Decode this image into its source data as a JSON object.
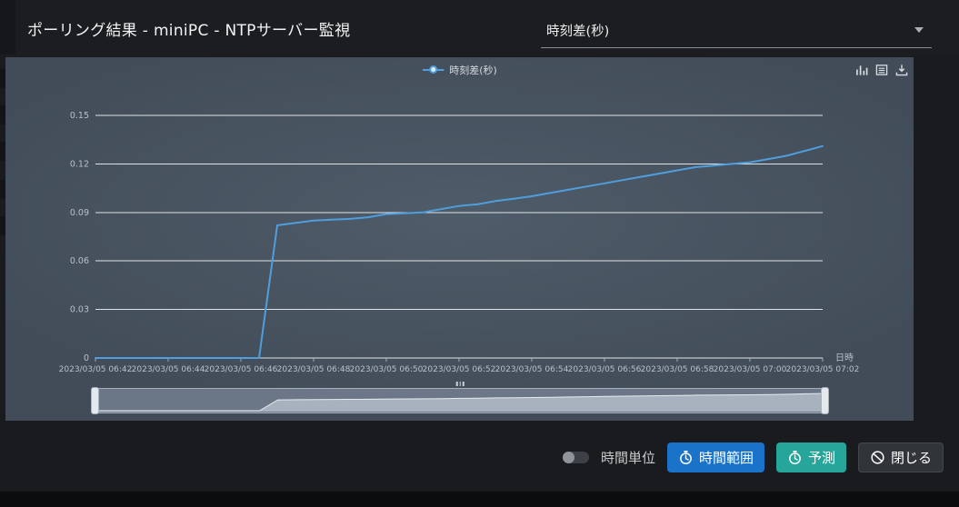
{
  "header": {
    "title": "ポーリング結果 - miniPC - NTPサーバー監視",
    "metric_select": {
      "value": "時刻差(秒)"
    }
  },
  "toolbox": {
    "icons": [
      "bar-chart-icon",
      "data-view-icon",
      "save-image-icon"
    ]
  },
  "footer": {
    "time_unit_label": "時間単位",
    "time_range_button": "時間範囲",
    "predict_button": "予測",
    "close_button": "閉じる"
  },
  "colors": {
    "line": "#4f9ede",
    "time_range_button": "#1a73c9",
    "predict_button": "#26a69a",
    "close_button": "#313539",
    "gridline": "#edf0f3",
    "axis_text": "#b9c0c6"
  },
  "chart_data": {
    "type": "line",
    "title": "",
    "xlabel": "日時",
    "ylabel": "",
    "ylim": [
      0,
      0.15
    ],
    "y_ticks": [
      0,
      0.03,
      0.06,
      0.09,
      0.12,
      0.15
    ],
    "grid": true,
    "legend_position": "top",
    "x_tick_labels": [
      "2023/03/05 06:42",
      "2023/03/05 06:44",
      "2023/03/05 06:46",
      "2023/03/05 06:48",
      "2023/03/05 06:50",
      "2023/03/05 06:52",
      "2023/03/05 06:54",
      "2023/03/05 06:56",
      "2023/03/05 06:58",
      "2023/03/05 07:00",
      "2023/03/05 07:02"
    ],
    "series": [
      {
        "name": "時刻差(秒)",
        "color": "#4f9ede",
        "x": [
          "2023/03/05 06:42:00",
          "2023/03/05 06:42:30",
          "2023/03/05 06:43:00",
          "2023/03/05 06:43:30",
          "2023/03/05 06:44:00",
          "2023/03/05 06:44:30",
          "2023/03/05 06:45:00",
          "2023/03/05 06:45:30",
          "2023/03/05 06:46:00",
          "2023/03/05 06:46:30",
          "2023/03/05 06:47:00",
          "2023/03/05 06:47:30",
          "2023/03/05 06:48:00",
          "2023/03/05 06:48:30",
          "2023/03/05 06:49:00",
          "2023/03/05 06:49:30",
          "2023/03/05 06:50:00",
          "2023/03/05 06:50:30",
          "2023/03/05 06:51:00",
          "2023/03/05 06:51:30",
          "2023/03/05 06:52:00",
          "2023/03/05 06:52:30",
          "2023/03/05 06:53:00",
          "2023/03/05 06:53:30",
          "2023/03/05 06:54:00",
          "2023/03/05 06:54:30",
          "2023/03/05 06:55:00",
          "2023/03/05 06:55:30",
          "2023/03/05 06:56:00",
          "2023/03/05 06:56:30",
          "2023/03/05 06:57:00",
          "2023/03/05 06:57:30",
          "2023/03/05 06:58:00",
          "2023/03/05 06:58:30",
          "2023/03/05 06:59:00",
          "2023/03/05 06:59:30",
          "2023/03/05 07:00:00",
          "2023/03/05 07:00:30",
          "2023/03/05 07:01:00",
          "2023/03/05 07:01:30",
          "2023/03/05 07:02:00"
        ],
        "values": [
          0,
          0,
          0,
          0,
          0,
          0,
          0,
          0,
          0,
          0,
          0.082,
          0.0835,
          0.085,
          0.0855,
          0.086,
          0.087,
          0.089,
          0.0895,
          0.09,
          0.092,
          0.094,
          0.095,
          0.097,
          0.0985,
          0.1,
          0.102,
          0.104,
          0.106,
          0.108,
          0.11,
          0.112,
          0.114,
          0.116,
          0.118,
          0.119,
          0.12,
          0.121,
          0.123,
          0.125,
          0.128,
          0.131
        ]
      }
    ]
  }
}
